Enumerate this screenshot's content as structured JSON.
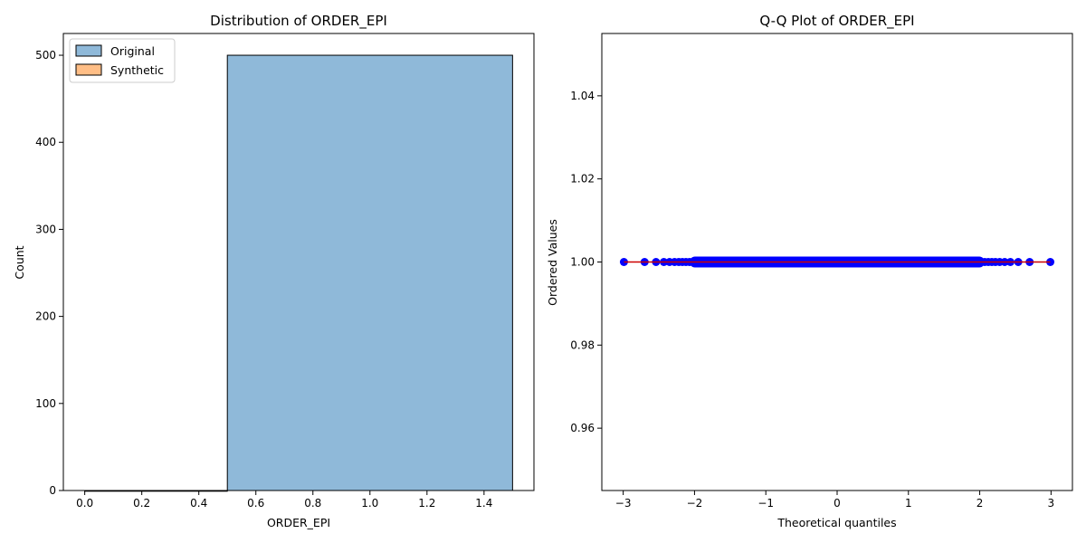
{
  "chart_data": [
    {
      "type": "bar",
      "title": "Distribution of ORDER_EPI",
      "xlabel": "ORDER_EPI",
      "ylabel": "Count",
      "xlim": [
        -0.075,
        1.575
      ],
      "ylim": [
        0,
        525
      ],
      "xticks": [
        0.0,
        0.2,
        0.4,
        0.6,
        0.8,
        1.0,
        1.2,
        1.4
      ],
      "xtick_labels": [
        "0.0",
        "0.2",
        "0.4",
        "0.6",
        "0.8",
        "1.0",
        "1.2",
        "1.4"
      ],
      "yticks": [
        0,
        100,
        200,
        300,
        400,
        500
      ],
      "ytick_labels": [
        "0",
        "100",
        "200",
        "300",
        "400",
        "500"
      ],
      "legend_position": "top-left",
      "series": [
        {
          "name": "Original",
          "color": "#1f77b4",
          "bins": [
            {
              "start": 0.0,
              "end": 0.5,
              "value": 0
            },
            {
              "start": 0.5,
              "end": 1.5,
              "value": 500
            }
          ]
        },
        {
          "name": "Synthetic",
          "color": "#ff7f0e",
          "bins": []
        }
      ]
    },
    {
      "type": "scatter",
      "title": "Q-Q Plot of ORDER_EPI",
      "xlabel": "Theoretical quantiles",
      "ylabel": "Ordered Values",
      "xlim": [
        -3.3,
        3.3
      ],
      "ylim": [
        0.945,
        1.055
      ],
      "xticks": [
        -3,
        -2,
        -1,
        0,
        1,
        2,
        3
      ],
      "xtick_labels": [
        "−3",
        "−2",
        "−1",
        "0",
        "1",
        "2",
        "3"
      ],
      "yticks": [
        0.96,
        0.98,
        1.0,
        1.02,
        1.04
      ],
      "ytick_labels": [
        "0.96",
        "0.98",
        "1.00",
        "1.02",
        "1.04"
      ],
      "points": {
        "color": "#0000ff",
        "y": 1.0,
        "x": [
          -2.99,
          -2.7,
          -2.54,
          -2.43,
          -2.35,
          -2.28,
          -2.22,
          -2.17,
          -2.12,
          -2.07,
          -1.9,
          -1.6,
          -1.3,
          -1.0,
          -0.7,
          -0.4,
          -0.1,
          0.1,
          0.4,
          0.7,
          1.0,
          1.3,
          1.6,
          1.9,
          2.07,
          2.12,
          2.17,
          2.22,
          2.28,
          2.35,
          2.43,
          2.54,
          2.7,
          2.99
        ]
      },
      "fit_line": {
        "color": "#cc0000",
        "x": [
          -2.99,
          2.99
        ],
        "y": [
          1.0,
          1.0
        ]
      }
    }
  ]
}
